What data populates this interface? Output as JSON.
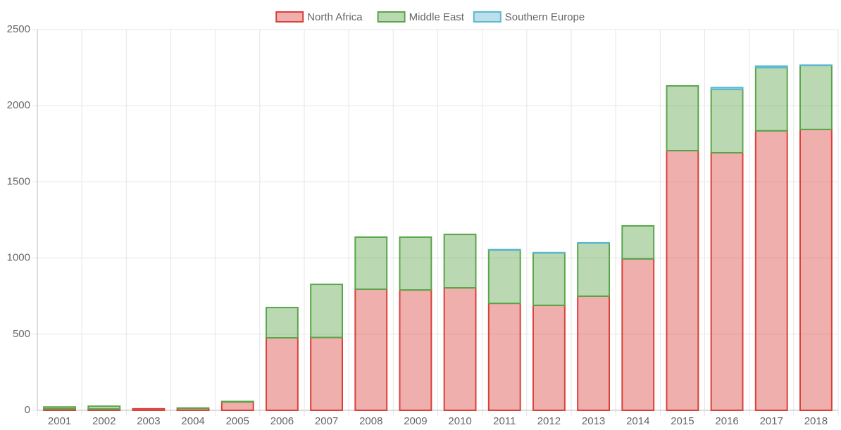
{
  "chart_data": {
    "type": "stacked_bar",
    "categories": [
      "2001",
      "2002",
      "2003",
      "2004",
      "2005",
      "2006",
      "2007",
      "2008",
      "2009",
      "2010",
      "2011",
      "2012",
      "2013",
      "2014",
      "2015",
      "2016",
      "2017",
      "2018"
    ],
    "series": [
      {
        "name": "North Africa",
        "color": "#d9413a",
        "values": [
          10,
          8,
          10,
          13,
          55,
          476,
          478,
          795,
          790,
          804,
          702,
          689,
          749,
          994,
          1705,
          1691,
          1835,
          1844
        ]
      },
      {
        "name": "Middle East",
        "color": "#5aa54a",
        "values": [
          12,
          19,
          0,
          2,
          3,
          199,
          349,
          342,
          347,
          351,
          350,
          344,
          349,
          217,
          425,
          416,
          415,
          420
        ]
      },
      {
        "name": "Southern Europe",
        "color": "#5bb8d0",
        "values": [
          0,
          0,
          0,
          0,
          0,
          0,
          0,
          0,
          0,
          0,
          3,
          3,
          2,
          0,
          0,
          12,
          10,
          3
        ]
      }
    ],
    "ylim": [
      0,
      2500
    ],
    "yticks": [
      0,
      500,
      1000,
      1500,
      2000,
      2500
    ],
    "grid": true,
    "legend": "top"
  }
}
